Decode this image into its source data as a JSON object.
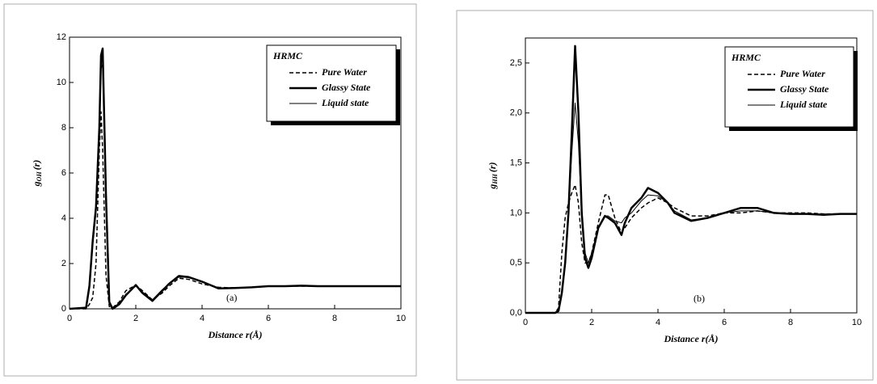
{
  "chart_data": [
    {
      "type": "line",
      "annotation": "(a)",
      "xlabel": "Distance r(Å)",
      "ylabel": {
        "symbol": "g",
        "subscript": "OH",
        "suffix": "(r)"
      },
      "legend_title": "HRMC",
      "legend": "upper right",
      "x": [
        0,
        0.5,
        0.6,
        0.7,
        0.8,
        0.9,
        0.95,
        1.0,
        1.1,
        1.2,
        1.3,
        1.5,
        1.7,
        2.0,
        2.2,
        2.5,
        2.8,
        3.0,
        3.3,
        3.6,
        4.0,
        4.5,
        5,
        5.5,
        6,
        6.5,
        7,
        7.5,
        8,
        8.5,
        9,
        9.5,
        10
      ],
      "series": [
        {
          "name": "Pure Water",
          "color": "#000000",
          "dash": true,
          "width": 1.5,
          "values": [
            0,
            0,
            0.2,
            0.5,
            2,
            7,
            8.7,
            7,
            1.5,
            0.1,
            0.05,
            0.3,
            0.8,
            1.05,
            0.8,
            0.4,
            0.7,
            1.0,
            1.35,
            1.3,
            1.1,
            0.95,
            0.92,
            0.95,
            1.0,
            1.0,
            1.0,
            1.0,
            1.0,
            1.0,
            1.0,
            1.0,
            1.0
          ]
        },
        {
          "name": "Glassy State",
          "color": "#000000",
          "dash": false,
          "width": 2.5,
          "values": [
            0,
            0.05,
            1.0,
            3,
            4.5,
            8,
            11.2,
            11.5,
            5,
            0.3,
            0,
            0.2,
            0.6,
            1.05,
            0.7,
            0.35,
            0.8,
            1.1,
            1.45,
            1.4,
            1.2,
            0.9,
            0.92,
            0.95,
            1.0,
            1.0,
            1.02,
            1.0,
            1.0,
            1.0,
            1.0,
            1.0,
            1.0
          ]
        },
        {
          "name": "Liquid state",
          "color": "#000000",
          "dash": false,
          "width": 1,
          "values": [
            0,
            0.05,
            0.9,
            2.8,
            4.3,
            7.5,
            10.6,
            10.8,
            4.5,
            0.3,
            0.05,
            0.25,
            0.65,
            1.0,
            0.75,
            0.4,
            0.85,
            1.1,
            1.4,
            1.38,
            1.18,
            0.92,
            0.93,
            0.96,
            1.0,
            1.0,
            1.01,
            1.0,
            1.0,
            1.0,
            1.0,
            1.0,
            1.0
          ]
        }
      ],
      "xlim": [
        0,
        10
      ],
      "xticks": [
        0,
        2,
        4,
        6,
        8,
        10
      ],
      "ylim": [
        0,
        12
      ],
      "yticks": [
        0,
        2,
        4,
        6,
        8,
        10,
        12
      ]
    },
    {
      "type": "line",
      "annotation": "(b)",
      "xlabel": "Distance r(Å)",
      "ylabel": {
        "symbol": "g",
        "subscript": "HH",
        "suffix": "(r)"
      },
      "legend_title": "HRMC",
      "legend": "upper right",
      "x": [
        0,
        0.9,
        1.0,
        1.1,
        1.2,
        1.3,
        1.4,
        1.5,
        1.6,
        1.7,
        1.8,
        1.9,
        2.0,
        2.2,
        2.4,
        2.5,
        2.7,
        2.9,
        3.0,
        3.2,
        3.5,
        3.7,
        4.0,
        4.3,
        4.5,
        5,
        5.5,
        6,
        6.5,
        7,
        7.5,
        8,
        8.5,
        9,
        9.5,
        10
      ],
      "series": [
        {
          "name": "Pure Water",
          "color": "#000000",
          "dash": true,
          "width": 1.5,
          "values": [
            0,
            0,
            0.05,
            0.6,
            0.95,
            1.1,
            1.2,
            1.28,
            1.1,
            0.7,
            0.5,
            0.5,
            0.6,
            0.9,
            1.18,
            1.18,
            0.95,
            0.8,
            0.85,
            0.95,
            1.05,
            1.1,
            1.15,
            1.1,
            1.05,
            0.97,
            0.97,
            1.0,
            1.0,
            1.02,
            1.0,
            1.0,
            1.0,
            0.99,
            0.99,
            0.99
          ]
        },
        {
          "name": "Glassy State",
          "color": "#000000",
          "dash": false,
          "width": 2.5,
          "values": [
            0,
            0,
            0.02,
            0.2,
            0.5,
            1.0,
            1.8,
            2.67,
            2.0,
            1.0,
            0.55,
            0.45,
            0.55,
            0.85,
            0.97,
            0.95,
            0.9,
            0.78,
            0.9,
            1.05,
            1.15,
            1.25,
            1.2,
            1.1,
            1.0,
            0.92,
            0.95,
            1.0,
            1.05,
            1.05,
            1.0,
            0.99,
            0.99,
            0.98,
            0.99,
            0.99
          ]
        },
        {
          "name": "Liquid state",
          "color": "#000000",
          "dash": false,
          "width": 1,
          "values": [
            0,
            0,
            0.02,
            0.2,
            0.5,
            1.0,
            1.6,
            2.1,
            1.7,
            0.95,
            0.6,
            0.5,
            0.6,
            0.85,
            0.97,
            0.97,
            0.92,
            0.9,
            0.95,
            1.0,
            1.12,
            1.18,
            1.17,
            1.1,
            1.02,
            0.93,
            0.95,
            1.0,
            1.02,
            1.02,
            1.0,
            0.99,
            0.99,
            0.99,
            0.99,
            0.99
          ]
        }
      ],
      "xlim": [
        0,
        10
      ],
      "xticks": [
        0,
        2,
        4,
        6,
        8,
        10
      ],
      "ylim": [
        0,
        2.75
      ],
      "yticks": [
        {
          "value": 0,
          "label": "0,0"
        },
        {
          "value": 0.5,
          "label": "0,5"
        },
        {
          "value": 1.0,
          "label": "1,0"
        },
        {
          "value": 1.5,
          "label": "1,5"
        },
        {
          "value": 2.0,
          "label": "2,0"
        },
        {
          "value": 2.5,
          "label": "2,5"
        }
      ]
    }
  ]
}
